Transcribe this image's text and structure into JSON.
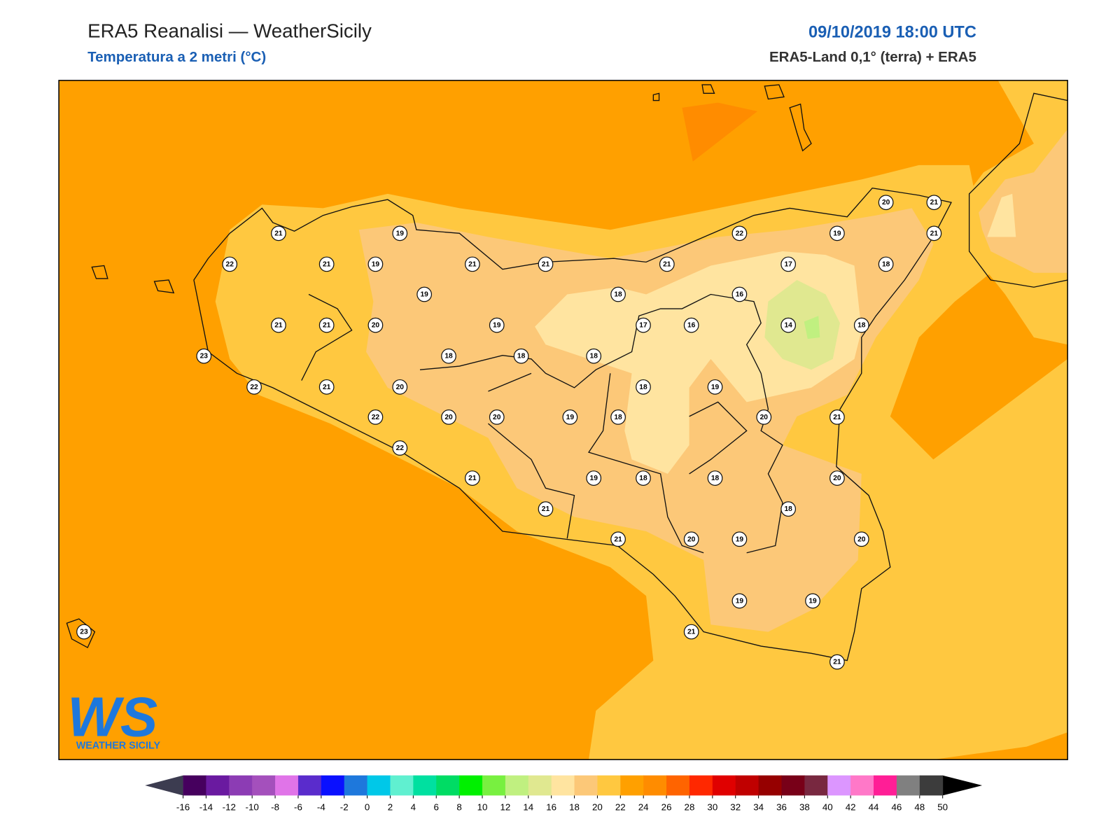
{
  "header": {
    "title": "ERA5 Reanalisi — WeatherSicily",
    "subtitle": "Temperatura a 2 metri (°C)",
    "datetime": "09/10/2019 18:00 UTC",
    "source": "ERA5-Land 0,1° (terra) + ERA5"
  },
  "stations": [
    21,
    19,
    22,
    21,
    19,
    21,
    21,
    19,
    18,
    21,
    22,
    19,
    20,
    21,
    21,
    18,
    17,
    16,
    21,
    21,
    20,
    19,
    17,
    16,
    14,
    18,
    23,
    18,
    18,
    18,
    22,
    21,
    20,
    18,
    19,
    22,
    20,
    20,
    19,
    18,
    20,
    21,
    22,
    21,
    19,
    18,
    18,
    20,
    21,
    18,
    21,
    20,
    19,
    20,
    19,
    19,
    21,
    21,
    23
  ],
  "colorbar": {
    "ticks": [
      -16,
      -14,
      -12,
      -10,
      -8,
      -6,
      -4,
      -2,
      0,
      2,
      4,
      6,
      8,
      10,
      12,
      14,
      16,
      18,
      20,
      22,
      24,
      26,
      28,
      30,
      32,
      34,
      36,
      38,
      40,
      42,
      44,
      46,
      48,
      50
    ],
    "colors": [
      "#46005e",
      "#6a1aa0",
      "#8c3cb4",
      "#a450bc",
      "#e074e8",
      "#5a2ccc",
      "#0a10ff",
      "#1e78dc",
      "#00c8e8",
      "#60f0d0",
      "#00e0a0",
      "#00dc64",
      "#00f000",
      "#78f040",
      "#c0f080",
      "#e0e890",
      "#ffe4a0",
      "#fcc878",
      "#ffc840",
      "#ffa000",
      "#ff8c00",
      "#ff6400",
      "#ff2800",
      "#e00000",
      "#c00000",
      "#960000",
      "#780018",
      "#782840",
      "#dc96ff",
      "#ff78c8",
      "#ff1e96",
      "#808080",
      "#3c3c3c"
    ]
  },
  "logo": {
    "mark": "WS",
    "text": "WEATHER SICILY"
  }
}
